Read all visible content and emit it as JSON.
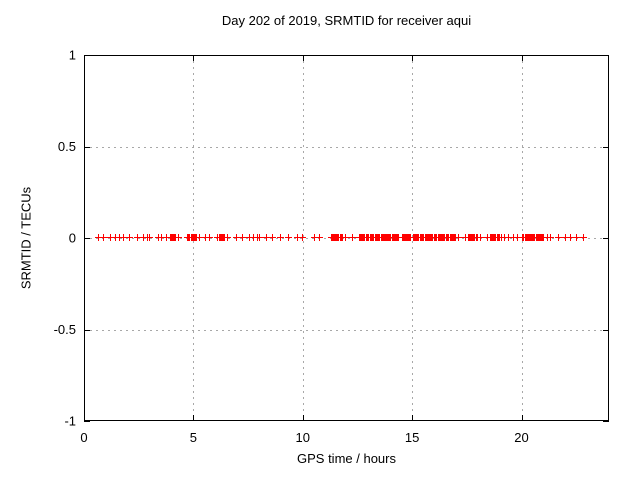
{
  "chart_data": {
    "type": "scatter",
    "title": "Day 202 of 2019, SRMTID for receiver aqui",
    "xlabel": "GPS time / hours",
    "ylabel": "SRMTID / TECUs",
    "xlim": [
      0,
      24
    ],
    "ylim": [
      -1,
      1
    ],
    "xticks": [
      {
        "v": 0,
        "label": "0"
      },
      {
        "v": 5,
        "label": "5"
      },
      {
        "v": 10,
        "label": "10"
      },
      {
        "v": 15,
        "label": "15"
      },
      {
        "v": 20,
        "label": "20"
      }
    ],
    "yticks": [
      {
        "v": -1,
        "label": "-1"
      },
      {
        "v": -0.5,
        "label": "-0.5"
      },
      {
        "v": 0,
        "label": "0"
      },
      {
        "v": 0.5,
        "label": "0.5"
      },
      {
        "v": 1,
        "label": "1"
      }
    ],
    "grid": true,
    "legend": "none",
    "marker": {
      "shape": "plus",
      "size": 7
    },
    "series": [
      {
        "name": "SRMTID",
        "y_value": 0,
        "x_start": 0.64,
        "x_end": 23.09,
        "density_steps": {
          "sparse": 0.32,
          "mid": 0.16,
          "solid": 0.05
        },
        "segments": [
          [
            0.64,
            0.8,
            "sparse"
          ],
          [
            0.87,
            1.28,
            "sparse"
          ],
          [
            1.4,
            1.52,
            "mid"
          ],
          [
            1.59,
            1.71,
            "mid"
          ],
          [
            1.8,
            1.95,
            "mid"
          ],
          [
            2.06,
            2.29,
            "sparse"
          ],
          [
            2.41,
            2.62,
            "sparse"
          ],
          [
            2.71,
            2.87,
            "mid"
          ],
          [
            2.99,
            3.26,
            "sparse"
          ],
          [
            3.38,
            3.63,
            "mid"
          ],
          [
            3.75,
            3.84,
            "mid"
          ],
          [
            3.93,
            4.21,
            "solid"
          ],
          [
            4.3,
            4.42,
            "mid"
          ],
          [
            4.72,
            5.15,
            "solid"
          ],
          [
            5.26,
            5.37,
            "mid"
          ],
          [
            5.52,
            5.61,
            "mid"
          ],
          [
            5.72,
            6.02,
            "sparse"
          ],
          [
            6.1,
            6.4,
            "solid"
          ],
          [
            6.52,
            6.65,
            "mid"
          ],
          [
            6.93,
            7.16,
            "sparse"
          ],
          [
            7.24,
            7.62,
            "sparse"
          ],
          [
            7.74,
            7.9,
            "mid"
          ],
          [
            8.0,
            8.46,
            "sparse"
          ],
          [
            8.58,
            8.84,
            "sparse"
          ],
          [
            8.94,
            9.22,
            "sparse"
          ],
          [
            9.34,
            9.65,
            "sparse"
          ],
          [
            9.75,
            9.86,
            "mid"
          ],
          [
            9.98,
            10.21,
            "sparse"
          ],
          [
            10.52,
            10.62,
            "mid"
          ],
          [
            10.74,
            10.83,
            "mid"
          ],
          [
            11.28,
            11.81,
            "solid"
          ],
          [
            11.93,
            12.3,
            "sparse"
          ],
          [
            12.57,
            13.0,
            "solid"
          ],
          [
            13.08,
            13.49,
            "solid"
          ],
          [
            13.56,
            14.4,
            "solid"
          ],
          [
            14.52,
            14.93,
            "solid"
          ],
          [
            15.04,
            15.5,
            "solid"
          ],
          [
            15.58,
            16.0,
            "solid"
          ],
          [
            16.06,
            16.5,
            "solid"
          ],
          [
            16.56,
            16.99,
            "solid"
          ],
          [
            17.1,
            17.45,
            "sparse"
          ],
          [
            17.55,
            17.98,
            "solid"
          ],
          [
            18.1,
            18.44,
            "sparse"
          ],
          [
            18.56,
            19.0,
            "solid"
          ],
          [
            19.05,
            19.51,
            "mid"
          ],
          [
            19.63,
            19.93,
            "mid"
          ],
          [
            20.04,
            21.03,
            "solid"
          ],
          [
            21.15,
            21.37,
            "mid"
          ],
          [
            21.67,
            22.1,
            "sparse"
          ],
          [
            22.22,
            22.33,
            "mid"
          ],
          [
            22.48,
            23.09,
            "sparse"
          ]
        ]
      }
    ]
  },
  "colors": {
    "background": "#ffffff",
    "axis": "#000000",
    "grid": "#a8a8a8",
    "text": "#000000",
    "marker": "#ff0000"
  }
}
